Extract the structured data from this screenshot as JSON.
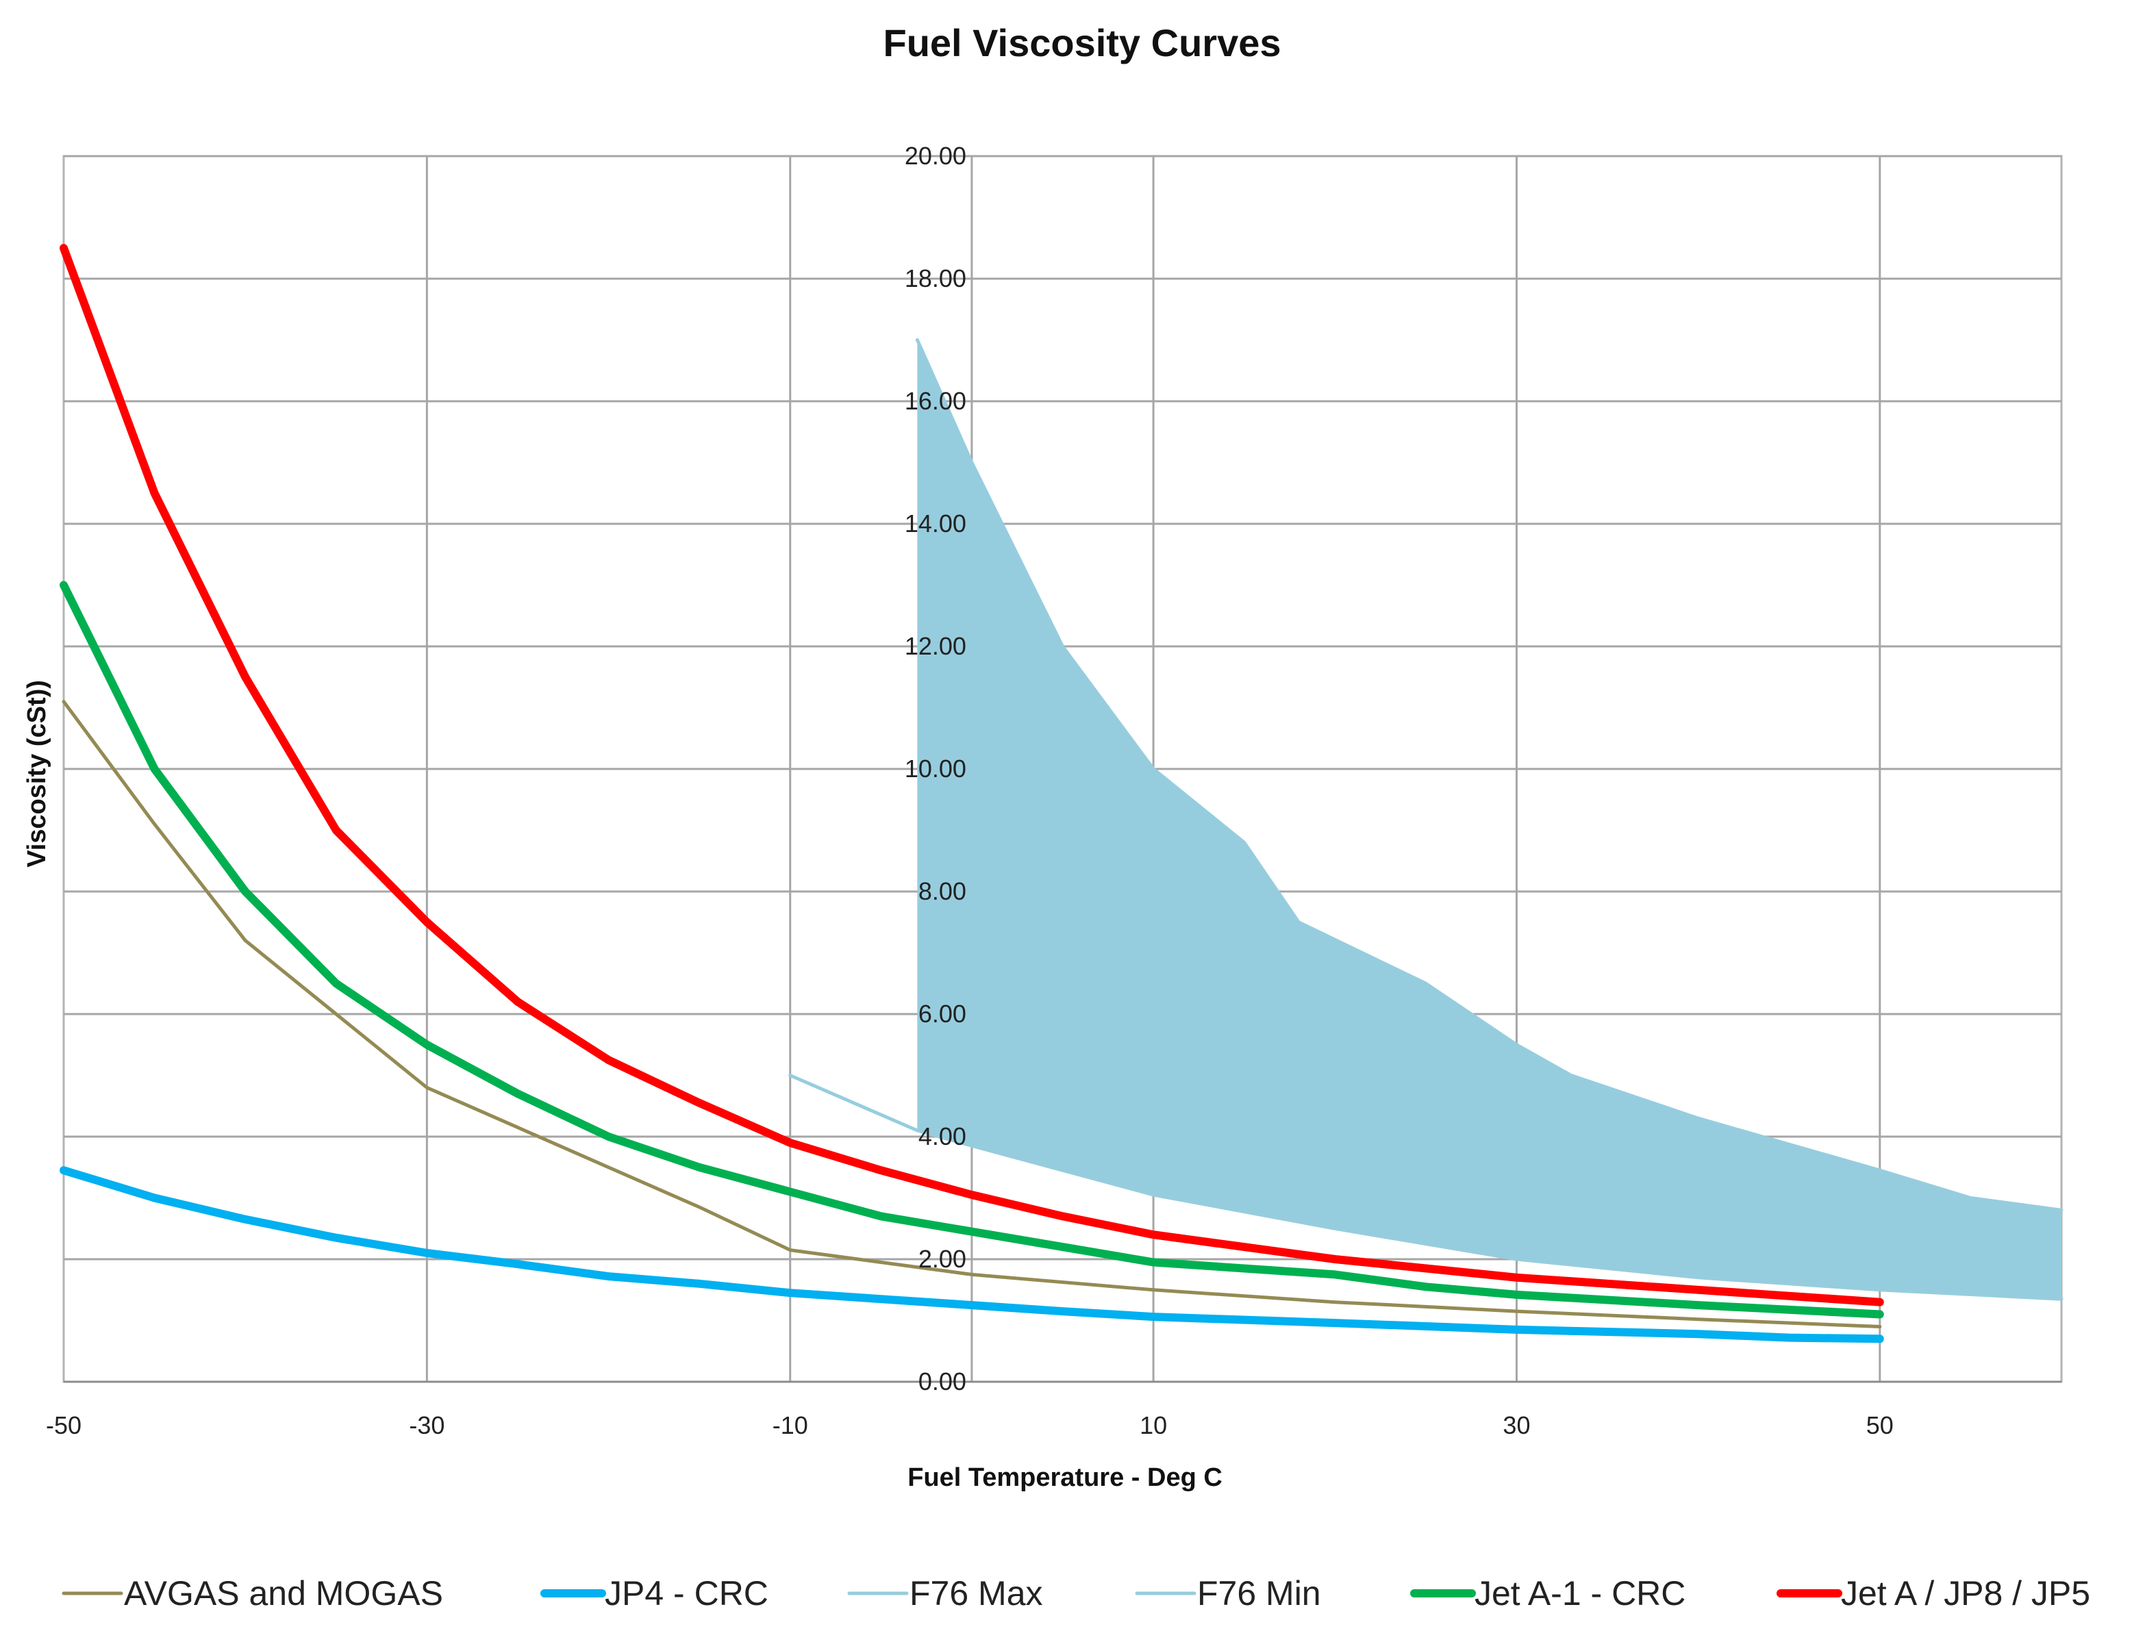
{
  "chart_data": {
    "type": "line",
    "title": "Fuel Viscosity Curves",
    "xlabel": "Fuel Temperature - Deg C",
    "ylabel": "Viscosity (cSt))",
    "xlim": [
      -50,
      60
    ],
    "ylim": [
      0,
      20
    ],
    "x_ticks": [
      -50,
      -30,
      -10,
      10,
      30,
      50
    ],
    "x_tick_labels": [
      "-50",
      "-30",
      "-10",
      "10",
      "30",
      "50"
    ],
    "x_grid": [
      -30,
      -10,
      0,
      10,
      30,
      50
    ],
    "y_ticks": [
      0,
      2,
      4,
      6,
      8,
      10,
      12,
      14,
      16,
      18,
      20
    ],
    "y_tick_labels": [
      "0.00",
      "2.00",
      "4.00",
      "6.00",
      "8.00",
      "10.00",
      "12.00",
      "14.00",
      "16.00",
      "18.00",
      "20.00"
    ],
    "y_axis_crosses_x": 0,
    "grid": true,
    "legend_position": "bottom",
    "shaded_region": {
      "between": [
        "F76 Min",
        "F76 Max"
      ],
      "color": "#96CDDE"
    },
    "series": [
      {
        "name": "AVGAS and MOGAS",
        "color": "#948A54",
        "width": "thin",
        "points": [
          [
            -50,
            11.1
          ],
          [
            -45,
            9.1
          ],
          [
            -40,
            7.2
          ],
          [
            -35,
            6.0
          ],
          [
            -30,
            4.8
          ],
          [
            -25,
            4.15
          ],
          [
            -20,
            3.5
          ],
          [
            -15,
            2.85
          ],
          [
            -10,
            2.15
          ],
          [
            -5,
            1.95
          ],
          [
            0,
            1.75
          ],
          [
            10,
            1.5
          ],
          [
            20,
            1.3
          ],
          [
            30,
            1.15
          ],
          [
            40,
            1.02
          ],
          [
            50,
            0.9
          ]
        ]
      },
      {
        "name": "JP4 - CRC",
        "color": "#00B0F0",
        "width": "thick",
        "points": [
          [
            -50,
            3.45
          ],
          [
            -45,
            3.0
          ],
          [
            -40,
            2.65
          ],
          [
            -35,
            2.35
          ],
          [
            -30,
            2.1
          ],
          [
            -25,
            1.92
          ],
          [
            -20,
            1.72
          ],
          [
            -15,
            1.6
          ],
          [
            -10,
            1.45
          ],
          [
            -5,
            1.35
          ],
          [
            0,
            1.25
          ],
          [
            5,
            1.15
          ],
          [
            10,
            1.06
          ],
          [
            20,
            0.96
          ],
          [
            30,
            0.85
          ],
          [
            40,
            0.78
          ],
          [
            45,
            0.72
          ],
          [
            50,
            0.7
          ]
        ]
      },
      {
        "name": "F76 Max",
        "color": "#96CDDE",
        "width": "thin",
        "points": [
          [
            -3,
            17.0
          ],
          [
            0,
            15.0
          ],
          [
            5,
            12.0
          ],
          [
            10,
            10.0
          ],
          [
            15,
            8.8
          ],
          [
            18,
            7.5
          ],
          [
            25,
            6.5
          ],
          [
            30,
            5.5
          ],
          [
            33,
            5.0
          ],
          [
            40,
            4.3
          ],
          [
            50,
            3.45
          ],
          [
            55,
            3.0
          ],
          [
            60,
            2.8
          ]
        ]
      },
      {
        "name": "F76 Min",
        "color": "#96CDDE",
        "width": "thin",
        "points": [
          [
            -10,
            5.0
          ],
          [
            -3,
            4.1
          ],
          [
            0,
            3.85
          ],
          [
            10,
            3.05
          ],
          [
            20,
            2.5
          ],
          [
            30,
            2.0
          ],
          [
            40,
            1.7
          ],
          [
            50,
            1.5
          ],
          [
            60,
            1.35
          ]
        ]
      },
      {
        "name": "Jet A-1 - CRC",
        "color": "#00B050",
        "width": "thick",
        "points": [
          [
            -50,
            13.0
          ],
          [
            -45,
            10.0
          ],
          [
            -40,
            8.0
          ],
          [
            -35,
            6.5
          ],
          [
            -30,
            5.5
          ],
          [
            -25,
            4.7
          ],
          [
            -20,
            4.0
          ],
          [
            -15,
            3.5
          ],
          [
            -10,
            3.1
          ],
          [
            -5,
            2.7
          ],
          [
            0,
            2.45
          ],
          [
            5,
            2.2
          ],
          [
            10,
            1.95
          ],
          [
            20,
            1.75
          ],
          [
            25,
            1.55
          ],
          [
            30,
            1.42
          ],
          [
            40,
            1.25
          ],
          [
            50,
            1.1
          ]
        ]
      },
      {
        "name": "Jet A / JP8 / JP5",
        "color": "#FF0000",
        "width": "thick",
        "points": [
          [
            -50,
            18.5
          ],
          [
            -45,
            14.5
          ],
          [
            -40,
            11.5
          ],
          [
            -35,
            9.0
          ],
          [
            -30,
            7.5
          ],
          [
            -25,
            6.2
          ],
          [
            -20,
            5.25
          ],
          [
            -15,
            4.55
          ],
          [
            -10,
            3.9
          ],
          [
            -5,
            3.45
          ],
          [
            0,
            3.05
          ],
          [
            5,
            2.7
          ],
          [
            10,
            2.4
          ],
          [
            20,
            2.0
          ],
          [
            30,
            1.7
          ],
          [
            40,
            1.5
          ],
          [
            50,
            1.3
          ]
        ]
      }
    ]
  }
}
